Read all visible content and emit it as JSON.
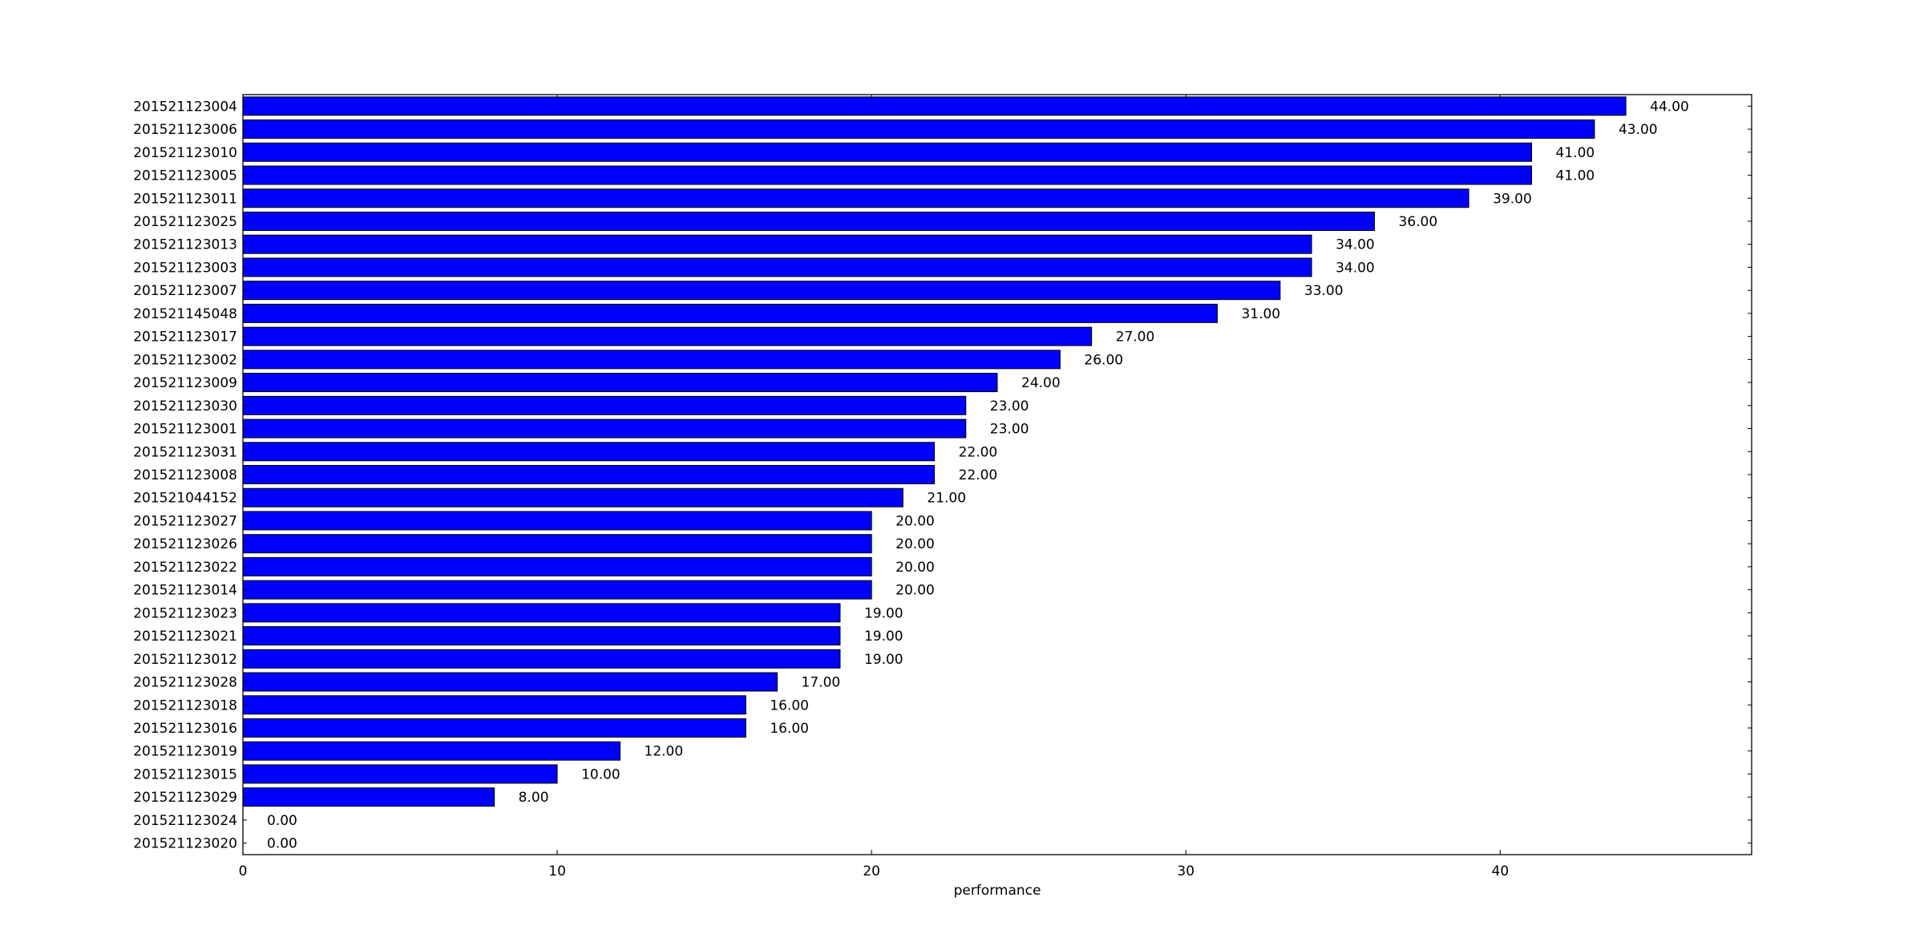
{
  "chart_data": {
    "type": "bar",
    "orientation": "horizontal",
    "title": "",
    "xlabel": "performance",
    "ylabel": "",
    "xlim": [
      0,
      48
    ],
    "x_ticks": [
      0,
      10,
      20,
      30,
      40
    ],
    "grid": false,
    "bar_color": "#0000ff",
    "bar_edge_color": "#000000",
    "value_format": "2-decimals",
    "categories": [
      "201521123004",
      "201521123006",
      "201521123010",
      "201521123005",
      "201521123011",
      "201521123025",
      "201521123013",
      "201521123003",
      "201521123007",
      "201521145048",
      "201521123017",
      "201521123002",
      "201521123009",
      "201521123030",
      "201521123001",
      "201521123031",
      "201521123008",
      "201521044152",
      "201521123027",
      "201521123026",
      "201521123022",
      "201521123014",
      "201521123023",
      "201521123021",
      "201521123012",
      "201521123028",
      "201521123018",
      "201521123016",
      "201521123019",
      "201521123015",
      "201521123029",
      "201521123024",
      "201521123020"
    ],
    "values": [
      44,
      43,
      41,
      41,
      39,
      36,
      34,
      34,
      33,
      31,
      27,
      26,
      24,
      23,
      23,
      22,
      22,
      21,
      20,
      20,
      20,
      20,
      19,
      19,
      19,
      17,
      16,
      16,
      12,
      10,
      8,
      0,
      0
    ],
    "value_labels": [
      "44.00",
      "43.00",
      "41.00",
      "41.00",
      "39.00",
      "36.00",
      "34.00",
      "34.00",
      "33.00",
      "31.00",
      "27.00",
      "26.00",
      "24.00",
      "23.00",
      "23.00",
      "22.00",
      "22.00",
      "21.00",
      "20.00",
      "20.00",
      "20.00",
      "20.00",
      "19.00",
      "19.00",
      "19.00",
      "17.00",
      "16.00",
      "16.00",
      "12.00",
      "10.00",
      "8.00",
      "0.00",
      "0.00"
    ]
  }
}
